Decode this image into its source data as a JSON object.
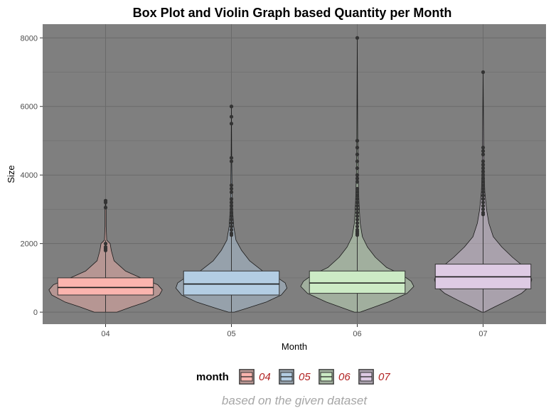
{
  "chart_data": {
    "type": "violin+box",
    "title": "Box Plot and Violin Graph based Quantity per Month",
    "xlabel": "Month",
    "ylabel": "Size",
    "caption": "based on the given dataset",
    "categories": [
      "04",
      "05",
      "06",
      "07"
    ],
    "ylim": [
      -350,
      8400
    ],
    "yticks": [
      0,
      2000,
      4000,
      6000,
      8000
    ],
    "grid": true,
    "panel_background": "#7f7f7f",
    "legend": {
      "title": "month",
      "position": "bottom",
      "entries": [
        "04",
        "05",
        "06",
        "07"
      ]
    },
    "series": [
      {
        "name": "04",
        "fill": "#fbb4ae",
        "box": {
          "q1": 500,
          "median": 720,
          "q3": 1000,
          "whisker_low": 0,
          "whisker_high": 2100
        },
        "outliers": [
          1800,
          1850,
          1900,
          2000,
          3050,
          3200,
          3250
        ],
        "violin": [
          [
            0,
            0.2
          ],
          [
            150,
            0.45
          ],
          [
            300,
            0.72
          ],
          [
            500,
            0.95
          ],
          [
            650,
            1.0
          ],
          [
            800,
            0.92
          ],
          [
            1000,
            0.62
          ],
          [
            1200,
            0.35
          ],
          [
            1500,
            0.15
          ],
          [
            1800,
            0.1
          ],
          [
            2000,
            0.08
          ],
          [
            2100,
            0.02
          ],
          [
            2500,
            0.01
          ],
          [
            3000,
            0.01
          ],
          [
            3250,
            0.0
          ]
        ]
      },
      {
        "name": "05",
        "fill": "#b3cde3",
        "box": {
          "q1": 500,
          "median": 820,
          "q3": 1200,
          "whisker_low": 0,
          "whisker_high": 2200
        },
        "outliers": [
          2250,
          2300,
          2400,
          2500,
          2600,
          2700,
          2800,
          2900,
          3000,
          3100,
          3200,
          3300,
          3500,
          3600,
          3700,
          4400,
          4500,
          5500,
          5700,
          6000
        ],
        "violin": [
          [
            0,
            0.05
          ],
          [
            100,
            0.25
          ],
          [
            300,
            0.62
          ],
          [
            500,
            0.88
          ],
          [
            700,
            0.98
          ],
          [
            850,
            0.95
          ],
          [
            1000,
            0.82
          ],
          [
            1200,
            0.55
          ],
          [
            1500,
            0.32
          ],
          [
            1800,
            0.18
          ],
          [
            2100,
            0.08
          ],
          [
            2500,
            0.04
          ],
          [
            3000,
            0.02
          ],
          [
            3700,
            0.01
          ],
          [
            4500,
            0.005
          ],
          [
            6000,
            0.0
          ]
        ]
      },
      {
        "name": "06",
        "fill": "#ccebc5",
        "box": {
          "q1": 550,
          "median": 850,
          "q3": 1200,
          "whisker_low": 0,
          "whisker_high": 2200
        },
        "outliers": [
          2250,
          2300,
          2350,
          2400,
          2500,
          2600,
          2700,
          2800,
          2900,
          3000,
          3100,
          3200,
          3300,
          3400,
          3500,
          3600,
          3800,
          3900,
          4000,
          4200,
          4400,
          4600,
          4800,
          5000,
          8000
        ],
        "violin": [
          [
            0,
            0.05
          ],
          [
            100,
            0.22
          ],
          [
            300,
            0.55
          ],
          [
            550,
            0.88
          ],
          [
            750,
            1.0
          ],
          [
            900,
            0.95
          ],
          [
            1100,
            0.78
          ],
          [
            1300,
            0.52
          ],
          [
            1600,
            0.32
          ],
          [
            1900,
            0.18
          ],
          [
            2200,
            0.09
          ],
          [
            2600,
            0.05
          ],
          [
            3200,
            0.03
          ],
          [
            4000,
            0.015
          ],
          [
            5000,
            0.008
          ],
          [
            8000,
            0.0
          ]
        ]
      },
      {
        "name": "07",
        "fill": "#decbe4",
        "box": {
          "q1": 680,
          "median": 1030,
          "q3": 1400,
          "whisker_low": 0,
          "whisker_high": 2800
        },
        "outliers": [
          2850,
          2900,
          3000,
          3100,
          3200,
          3300,
          3400,
          3500,
          3600,
          3700,
          3800,
          3900,
          4000,
          4100,
          4200,
          4300,
          4400,
          4600,
          4700,
          4800,
          7000
        ],
        "violin": [
          [
            0,
            0.02
          ],
          [
            150,
            0.2
          ],
          [
            350,
            0.45
          ],
          [
            550,
            0.68
          ],
          [
            750,
            0.82
          ],
          [
            950,
            0.86
          ],
          [
            1150,
            0.8
          ],
          [
            1350,
            0.7
          ],
          [
            1600,
            0.52
          ],
          [
            1900,
            0.33
          ],
          [
            2200,
            0.18
          ],
          [
            2600,
            0.1
          ],
          [
            3000,
            0.06
          ],
          [
            3500,
            0.03
          ],
          [
            4000,
            0.02
          ],
          [
            4800,
            0.01
          ],
          [
            7000,
            0.0
          ]
        ]
      }
    ]
  }
}
